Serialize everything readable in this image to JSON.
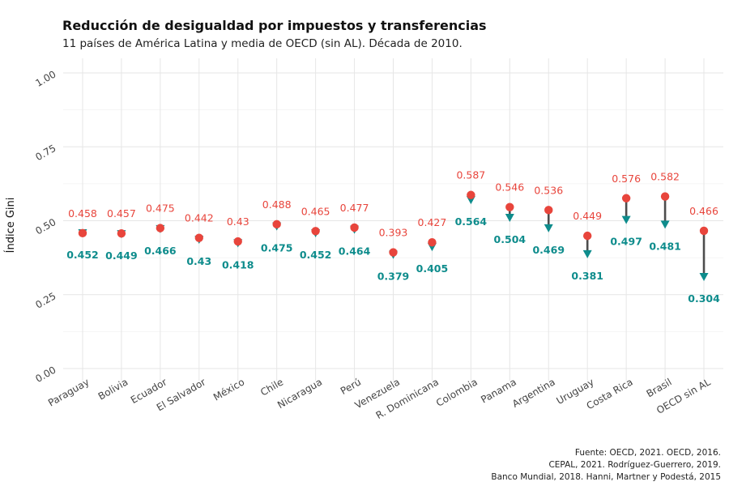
{
  "chart_data": {
    "type": "dot-arrow",
    "title": "Reducción de desigualdad por impuestos y transferencias",
    "subtitle": "11 países de América Latina y media de OECD (sin AL). Década de 2010.",
    "ylabel": "Índice Gini",
    "ylim": [
      0,
      1
    ],
    "yticks": [
      "0.00",
      "0.25",
      "0.50",
      "0.75",
      "1.00"
    ],
    "grid": true,
    "categories": [
      "Paraguay",
      "Bolivia",
      "Ecuador",
      "El Salvador",
      "México",
      "Chile",
      "Nicaragua",
      "Perú",
      "Venezuela",
      "R. Dominicana",
      "Colombia",
      "Panama",
      "Argentina",
      "Uruguay",
      "Costa Rica",
      "Brasil",
      "OECD sin AL"
    ],
    "series": [
      {
        "values": [
          0.458,
          0.457,
          0.475,
          0.442,
          0.43,
          0.488,
          0.465,
          0.477,
          0.393,
          0.427,
          0.587,
          0.546,
          0.536,
          0.449,
          0.576,
          0.582,
          0.466
        ],
        "labels": [
          "0.458",
          "0.457",
          "0.475",
          "0.442",
          "0.43",
          "0.488",
          "0.465",
          "0.477",
          "0.393",
          "0.427",
          "0.587",
          "0.546",
          "0.536",
          "0.449",
          "0.576",
          "0.582",
          "0.466"
        ],
        "color": "#e8453c"
      },
      {
        "values": [
          0.452,
          0.449,
          0.466,
          0.43,
          0.418,
          0.475,
          0.452,
          0.464,
          0.379,
          0.405,
          0.564,
          0.504,
          0.469,
          0.381,
          0.497,
          0.481,
          0.304
        ],
        "labels": [
          "0.452",
          "0.449",
          "0.466",
          "0.43",
          "0.418",
          "0.475",
          "0.452",
          "0.464",
          "0.379",
          "0.405",
          "0.564",
          "0.504",
          "0.469",
          "0.381",
          "0.497",
          "0.481",
          "0.304"
        ],
        "color": "#0e8c8c"
      }
    ],
    "arrow_color": "#4d4d4d"
  },
  "caption": [
    "Fuente: OECD, 2021. OECD, 2016.",
    "CEPAL, 2021. Rodríguez-Guerrero, 2019.",
    "Banco Mundial, 2018. Hanni, Martner y Podestá, 2015"
  ]
}
